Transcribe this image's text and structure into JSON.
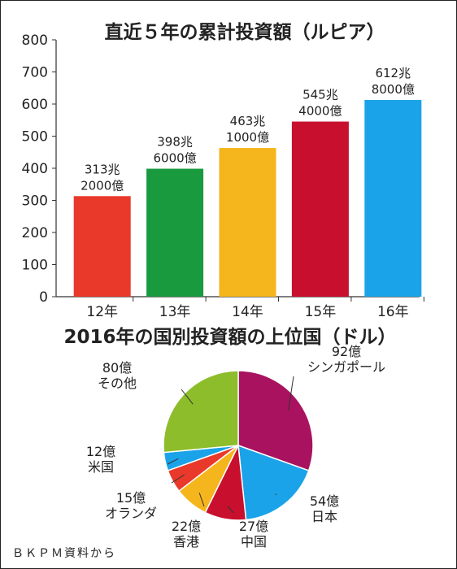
{
  "chart_data": [
    {
      "type": "bar",
      "title": "直近５年の累計投資額（ルピア）",
      "categories": [
        "12年",
        "13年",
        "14年",
        "15年",
        "16年"
      ],
      "values": [
        313.2,
        398.6,
        463.1,
        545.4,
        612.8
      ],
      "value_labels": [
        [
          "313兆",
          "2000億"
        ],
        [
          "398兆",
          "6000億"
        ],
        [
          "463兆",
          "1000億"
        ],
        [
          "545兆",
          "4000億"
        ],
        [
          "612兆",
          "8000億"
        ]
      ],
      "colors": [
        "#e8392b",
        "#1a9a3f",
        "#f5b51c",
        "#c8102e",
        "#1aa3e8"
      ],
      "yticks": [
        0,
        100,
        200,
        300,
        400,
        500,
        600,
        700,
        800
      ],
      "ylim": [
        0,
        800
      ],
      "grid": false
    },
    {
      "type": "pie",
      "title": "2016年の国別投資額の上位国（ドル）",
      "slices": [
        {
          "label": "シンガポール",
          "value_label": "92億",
          "value": 92,
          "color": "#a8125e"
        },
        {
          "label": "日本",
          "value_label": "54億",
          "value": 54,
          "color": "#1aa3e8"
        },
        {
          "label": "中国",
          "value_label": "27億",
          "value": 27,
          "color": "#c8102e"
        },
        {
          "label": "香港",
          "value_label": "22億",
          "value": 22,
          "color": "#f5b51c"
        },
        {
          "label": "オランダ",
          "value_label": "15億",
          "value": 15,
          "color": "#e8392b"
        },
        {
          "label": "米国",
          "value_label": "12億",
          "value": 12,
          "color": "#1aa3e8"
        },
        {
          "label": "その他",
          "value_label": "80億",
          "value": 80,
          "color": "#8dbd2b"
        }
      ]
    }
  ],
  "source": "ＢＫＰＭ資料から"
}
